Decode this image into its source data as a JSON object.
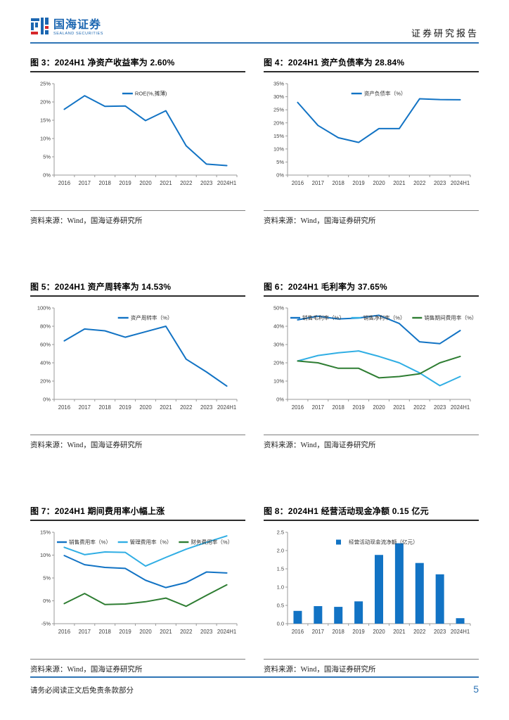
{
  "header": {
    "brand": "国海证券",
    "brand_sub": "SEALAND SECURITIES",
    "doc_type": "证券研究报告"
  },
  "footer": {
    "disclaimer": "请务必阅读正文后免责条款部分",
    "page_number": "5"
  },
  "colors": {
    "accent_blue": "#1273C4",
    "light_blue": "#30AEE4",
    "green": "#2E7D32",
    "header_line": "#2E74B5",
    "axis_gray": "#9a9a9a"
  },
  "chart_data": [
    {
      "type": "line",
      "title": "图 3：2024H1 净资产收益率为 2.60%",
      "source": "资料来源：Wind，国海证券研究所",
      "categories": [
        "2016",
        "2017",
        "2018",
        "2019",
        "2020",
        "2021",
        "2022",
        "2023",
        "2024H1"
      ],
      "series": [
        {
          "name": "ROE(%,摊薄)",
          "color": "#1273C4",
          "values": [
            18.0,
            21.7,
            18.8,
            18.9,
            14.9,
            17.6,
            8.0,
            3.0,
            2.6
          ]
        }
      ],
      "ylim": [
        0,
        25
      ],
      "ytick_step": 5,
      "yformat": "pct",
      "legend_position": "top-center",
      "grid": false
    },
    {
      "type": "line",
      "title": "图 4：2024H1 资产负债率为 28.84%",
      "source": "资料来源：Wind，国海证券研究所",
      "categories": [
        "2016",
        "2017",
        "2018",
        "2019",
        "2020",
        "2021",
        "2022",
        "2023",
        "2024H1"
      ],
      "series": [
        {
          "name": "资产负债率（%）",
          "color": "#1273C4",
          "values": [
            27.8,
            19.0,
            14.3,
            12.5,
            17.8,
            17.8,
            29.2,
            28.9,
            28.84
          ]
        }
      ],
      "ylim": [
        0,
        35
      ],
      "ytick_step": 5,
      "yformat": "pct",
      "legend_position": "top-center",
      "grid": false
    },
    {
      "type": "line",
      "title": "图 5：2024H1 资产周转率为 14.53%",
      "source": "资料来源：Wind，国海证券研究所",
      "categories": [
        "2016",
        "2017",
        "2018",
        "2019",
        "2020",
        "2021",
        "2022",
        "2023",
        "2024H1"
      ],
      "series": [
        {
          "name": "资产周转率（%）",
          "color": "#1273C4",
          "values": [
            64,
            77,
            75,
            68,
            74,
            80,
            44,
            30,
            14.53
          ]
        }
      ],
      "ylim": [
        0,
        100
      ],
      "ytick_step": 20,
      "yformat": "pct",
      "legend_position": "top-center",
      "grid": false
    },
    {
      "type": "line",
      "title": "图 6：2024H1 毛利率为 37.65%",
      "source": "资料来源：Wind，国海证券研究所",
      "categories": [
        "2016",
        "2017",
        "2018",
        "2019",
        "2020",
        "2021",
        "2022",
        "2023",
        "2024H1"
      ],
      "series": [
        {
          "name": "销售毛利率（%）",
          "color": "#1273C4",
          "values": [
            43.5,
            45.5,
            44.0,
            44.5,
            46.0,
            41.5,
            31.5,
            30.5,
            37.65
          ]
        },
        {
          "name": "销售净利率（%）",
          "color": "#30AEE4",
          "values": [
            21.0,
            24.0,
            25.5,
            26.5,
            23.5,
            20.0,
            14.5,
            7.5,
            12.5
          ]
        },
        {
          "name": "销售期间费用率（%）",
          "color": "#2E7D32",
          "values": [
            21.0,
            20.0,
            17.0,
            17.0,
            11.8,
            12.5,
            14.0,
            20.0,
            23.5
          ]
        }
      ],
      "ylim": [
        0,
        50
      ],
      "ytick_step": 10,
      "yformat": "pct",
      "legend_position": "top-row",
      "grid": false
    },
    {
      "type": "line",
      "title": "图 7：2024H1 期间费用率小幅上涨",
      "source": "资料来源：Wind，国海证券研究所",
      "categories": [
        "2016",
        "2017",
        "2018",
        "2019",
        "2020",
        "2021",
        "2022",
        "2023",
        "2024H1"
      ],
      "series": [
        {
          "name": "销售费用率（%）",
          "color": "#1273C4",
          "values": [
            9.9,
            7.9,
            7.3,
            7.1,
            4.5,
            2.9,
            4.0,
            6.3,
            6.1
          ]
        },
        {
          "name": "管理费用率（%）",
          "color": "#30AEE4",
          "values": [
            11.7,
            10.1,
            10.7,
            10.6,
            7.6,
            9.5,
            11.3,
            12.8,
            14.2
          ]
        },
        {
          "name": "财务费用率（%）",
          "color": "#2E7D32",
          "values": [
            -0.6,
            1.6,
            -0.8,
            -0.7,
            -0.2,
            0.6,
            -1.2,
            1.2,
            3.5
          ]
        }
      ],
      "ylim": [
        -5,
        15
      ],
      "ytick_step": 5,
      "yformat": "pct",
      "legend_position": "top-row",
      "grid": false
    },
    {
      "type": "bar",
      "title": "图 8：2024H1 经营活动现金净额 0.15 亿元",
      "source": "资料来源：Wind，国海证券研究所",
      "categories": [
        "2016",
        "2017",
        "2018",
        "2019",
        "2020",
        "2021",
        "2022",
        "2023",
        "2024H1"
      ],
      "series": [
        {
          "name": "经营活动现金流净额（亿元）",
          "color": "#1273C4",
          "values": [
            0.35,
            0.48,
            0.46,
            0.61,
            1.88,
            2.2,
            1.66,
            1.35,
            0.15
          ]
        }
      ],
      "ylim": [
        0,
        2.5
      ],
      "ytick_step": 0.5,
      "yformat": "fix1",
      "legend_position": "top-center",
      "grid": false
    }
  ]
}
